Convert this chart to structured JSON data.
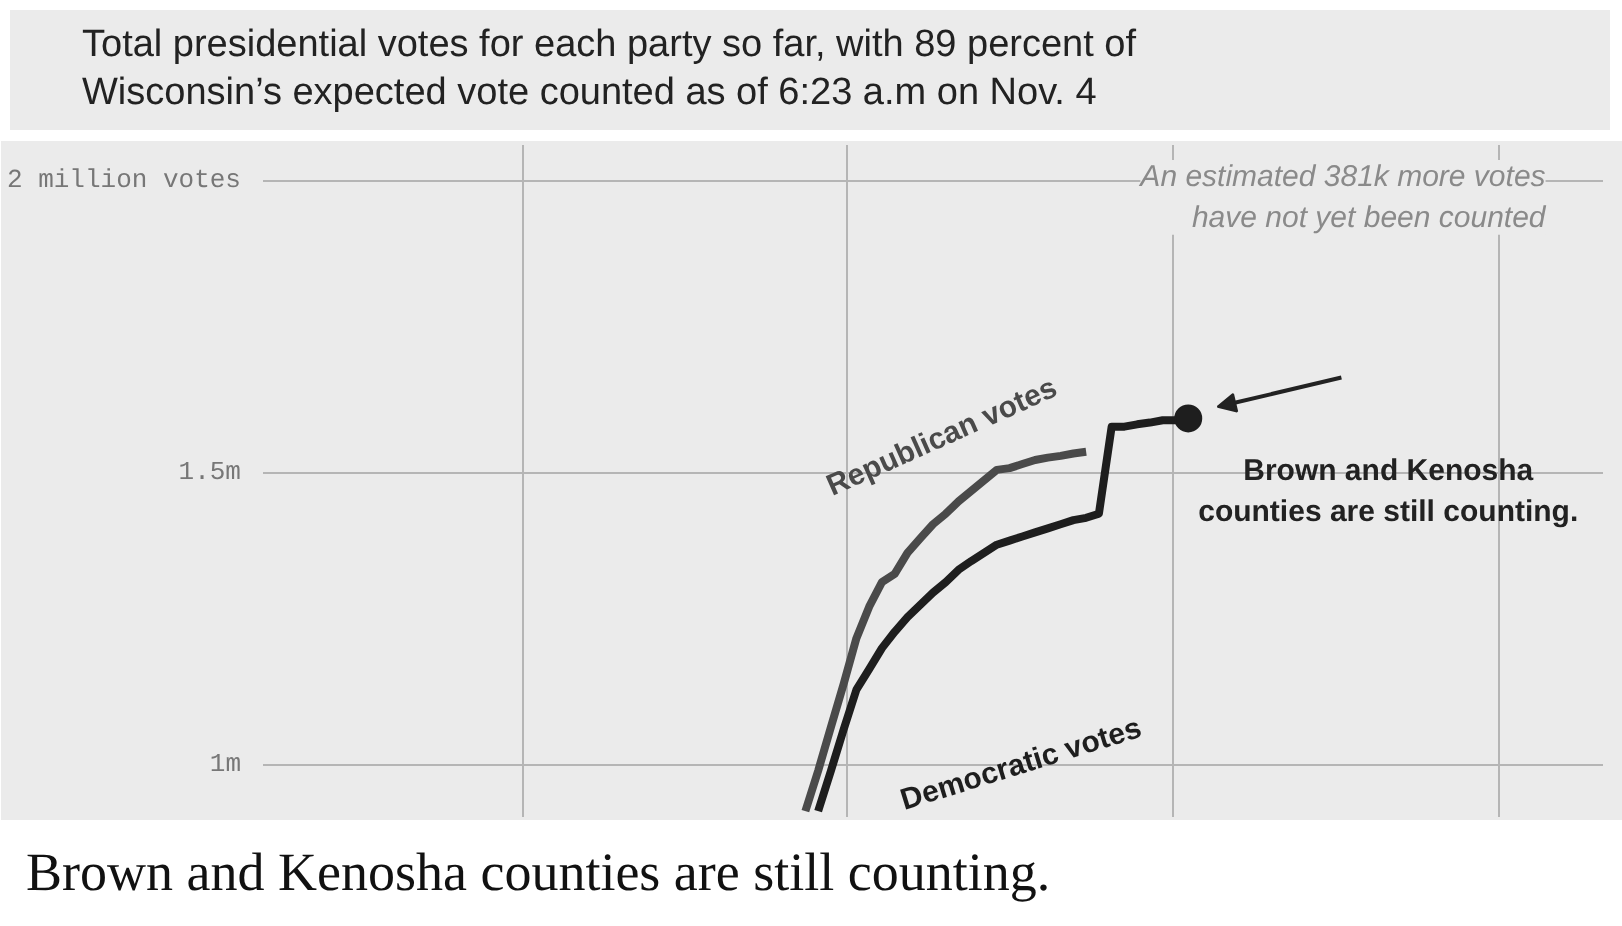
{
  "chart_data": {
    "type": "line",
    "title": "Total presidential votes for each party so far, with 89 percent of Wisconsin’s expected vote counted as of 6:23 a.m on Nov. 4",
    "categories": [
      null,
      null,
      null,
      null,
      null,
      null,
      null,
      null,
      null,
      null,
      null,
      null,
      null,
      null,
      null,
      null,
      null,
      null,
      null,
      null,
      null,
      null,
      null,
      null,
      null,
      null,
      null,
      null,
      null,
      null,
      null,
      null,
      null,
      null,
      null,
      null,
      null,
      null,
      null,
      null,
      null,
      null,
      null,
      null,
      null,
      null,
      null,
      null,
      null,
      null,
      null,
      null,
      null,
      null,
      null,
      null,
      null,
      null,
      null,
      null,
      null,
      null,
      null,
      null,
      null,
      null,
      null,
      null,
      null,
      null,
      null,
      null,
      null,
      null,
      null,
      null,
      null,
      null,
      null,
      null,
      null,
      null,
      null,
      null,
      null,
      null,
      null,
      null,
      null,
      null,
      null,
      null,
      null,
      null,
      null,
      null,
      null,
      null,
      null,
      null,
      null,
      null,
      null,
      null,
      null
    ],
    "series": [
      {
        "name": "Republican votes",
        "color": "#4a4a4a",
        "values": [
          null,
          null,
          null,
          null,
          null,
          null,
          null,
          null,
          null,
          null,
          null,
          null,
          null,
          null,
          null,
          null,
          null,
          null,
          null,
          null,
          null,
          null,
          null,
          null,
          null,
          null,
          null,
          null,
          null,
          null,
          null,
          null,
          null,
          null,
          null,
          null,
          null,
          null,
          null,
          null,
          null,
          null,
          0.92,
          0.989,
          1.064,
          1.138,
          1.216,
          1.27,
          1.312,
          1.326,
          1.362,
          1.387,
          1.411,
          1.429,
          1.45,
          1.468,
          1.486,
          1.504,
          1.507,
          1.514,
          1.521,
          1.525,
          1.528,
          1.532,
          1.535,
          null,
          null,
          null,
          null,
          null,
          null,
          null,
          null,
          null,
          null,
          null,
          null,
          null,
          null,
          null,
          null,
          null,
          null,
          null,
          null,
          null,
          null,
          null,
          null,
          null,
          null,
          null,
          null,
          null,
          null,
          null,
          null,
          null,
          null,
          null,
          null,
          null,
          null,
          null,
          null
        ]
      },
      {
        "name": "Democratic votes",
        "color": "#1e1e1e",
        "values": [
          null,
          null,
          null,
          null,
          null,
          null,
          null,
          null,
          null,
          null,
          null,
          null,
          null,
          null,
          null,
          null,
          null,
          null,
          null,
          null,
          null,
          null,
          null,
          null,
          null,
          null,
          null,
          null,
          null,
          null,
          null,
          null,
          null,
          null,
          null,
          null,
          null,
          null,
          null,
          null,
          null,
          null,
          null,
          0.92,
          0.989,
          1.06,
          1.128,
          1.163,
          1.199,
          1.227,
          1.252,
          1.273,
          1.294,
          1.312,
          1.333,
          1.348,
          1.362,
          1.376,
          1.383,
          1.39,
          1.397,
          1.404,
          1.411,
          1.418,
          1.422,
          1.429,
          1.578,
          1.578,
          1.582,
          1.585,
          1.589,
          1.589,
          1.592,
          null,
          null,
          null,
          null,
          null,
          null,
          null,
          null,
          null,
          null,
          null,
          null,
          null,
          null,
          null,
          null,
          null,
          null,
          null,
          null,
          null,
          null,
          null,
          null,
          null,
          null,
          null,
          null,
          null,
          null,
          null,
          null
        ]
      },
      {
        "type": "scatter",
        "color": "#1e1e1e",
        "marker": "circle",
        "values": [
          null,
          null,
          null,
          null,
          null,
          null,
          null,
          null,
          null,
          null,
          null,
          null,
          null,
          null,
          null,
          null,
          null,
          null,
          null,
          null,
          null,
          null,
          null,
          null,
          null,
          null,
          null,
          null,
          null,
          null,
          null,
          null,
          null,
          null,
          null,
          null,
          null,
          null,
          null,
          null,
          null,
          null,
          null,
          null,
          null,
          null,
          null,
          null,
          null,
          null,
          null,
          null,
          null,
          null,
          null,
          null,
          null,
          null,
          null,
          null,
          null,
          null,
          null,
          null,
          null,
          null,
          null,
          null,
          null,
          null,
          null,
          null,
          1.592,
          null,
          null,
          null,
          null,
          null,
          null,
          null,
          null,
          null,
          null,
          null,
          null,
          null,
          null,
          null,
          null,
          null,
          null,
          null,
          null,
          null,
          null,
          null,
          null,
          null,
          null,
          null,
          null,
          null,
          null,
          null,
          null
        ]
      }
    ],
    "ylim": [
      0.91,
      2.06
    ],
    "yticks": [
      {
        "value": 1,
        "label": "1m"
      },
      {
        "value": 1.5,
        "label": "1.5m"
      },
      {
        "value": 2,
        "label": "2 million votes"
      }
    ],
    "grid": true,
    "tick_labels": "y",
    "marker": "none",
    "line_style": "solid",
    "annotations": [
      "An estimated 381k more votes\nhave not yet been counted",
      "Brown and Kenosha\ncounties are still counting.",
      "Brown and Kenosha counties are still counting."
    ]
  }
}
